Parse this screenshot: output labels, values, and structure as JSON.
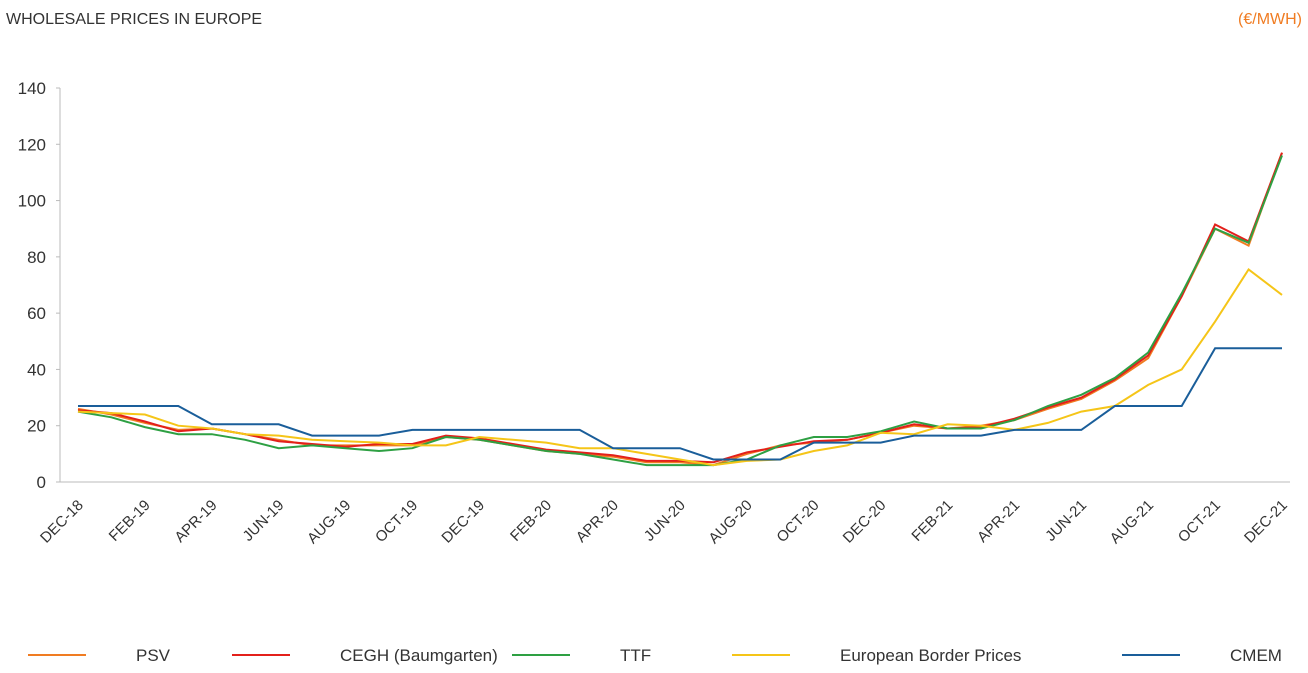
{
  "chart_data": {
    "type": "line",
    "title": "WHOLESALE PRICES IN EUROPE",
    "unit": "(€/MWH)",
    "categories": [
      "DEC-18",
      null,
      "FEB-19",
      null,
      "APR-19",
      null,
      "JUN-19",
      null,
      "AUG-19",
      null,
      "OCT-19",
      null,
      "DEC-19",
      null,
      "FEB-20",
      null,
      "APR-20",
      null,
      "JUN-20",
      null,
      "AUG-20",
      null,
      "OCT-20",
      null,
      "DEC-20",
      null,
      "FEB-21",
      null,
      "APR-21",
      null,
      "JUN-21",
      null,
      "AUG-21",
      null,
      "OCT-21",
      null,
      "DEC-21"
    ],
    "series": [
      {
        "name": "PSV",
        "color": "#f07c22",
        "values": [
          26,
          24,
          21,
          18.5,
          19,
          17,
          15,
          13,
          13,
          13,
          13,
          16,
          15,
          13,
          11,
          10,
          9,
          7,
          7,
          6,
          10,
          13,
          14,
          15,
          17.5,
          20,
          19,
          20,
          22,
          26,
          29.5,
          36,
          44,
          66,
          90,
          84,
          117
        ]
      },
      {
        "name": "CEGH (Baumgarten)",
        "color": "#e3201b",
        "values": [
          25.5,
          24.5,
          21.5,
          18,
          19,
          17,
          14.5,
          13.5,
          12.5,
          13.5,
          13.5,
          16.5,
          15.5,
          13.5,
          11.5,
          10.5,
          9.5,
          7.5,
          7.5,
          7,
          10.5,
          12.5,
          14.5,
          15,
          17.5,
          20.5,
          19,
          19.5,
          22.5,
          26.5,
          30,
          36.5,
          45,
          66,
          91.5,
          85.5,
          117
        ]
      },
      {
        "name": "TTF",
        "color": "#2ea043",
        "values": [
          25,
          23,
          19.5,
          17,
          17,
          15,
          12,
          13,
          12,
          11,
          12,
          16,
          15,
          13,
          11,
          10,
          8,
          6,
          6,
          6,
          8,
          13,
          16,
          16,
          18,
          21.5,
          19,
          19,
          22,
          27,
          31,
          37,
          46,
          67,
          90,
          85,
          116
        ]
      },
      {
        "name": "European Border Prices",
        "color": "#f5c518",
        "values": [
          25,
          24.5,
          24,
          20,
          19,
          17,
          16.5,
          15,
          14.5,
          14,
          13,
          13,
          16,
          15,
          14,
          12,
          12,
          10,
          8,
          6,
          7.5,
          8,
          11,
          13,
          17.5,
          17,
          20.5,
          20,
          18.5,
          21,
          25,
          27,
          34.5,
          40,
          57,
          75.5,
          66.5
        ]
      },
      {
        "name": "CMEM",
        "color": "#1a5e9a",
        "values": [
          27,
          27,
          27,
          27,
          20.5,
          20.5,
          20.5,
          16.5,
          16.5,
          16.5,
          18.5,
          18.5,
          18.5,
          18.5,
          18.5,
          18.5,
          12,
          12,
          12,
          8,
          8,
          8,
          14,
          14,
          14,
          16.5,
          16.5,
          16.5,
          18.5,
          18.5,
          18.5,
          27,
          27,
          27,
          47.5,
          47.5,
          47.5
        ]
      }
    ],
    "ylim": [
      0,
      140
    ],
    "yticks": [
      0,
      20,
      40,
      60,
      80,
      100,
      120,
      140
    ]
  }
}
